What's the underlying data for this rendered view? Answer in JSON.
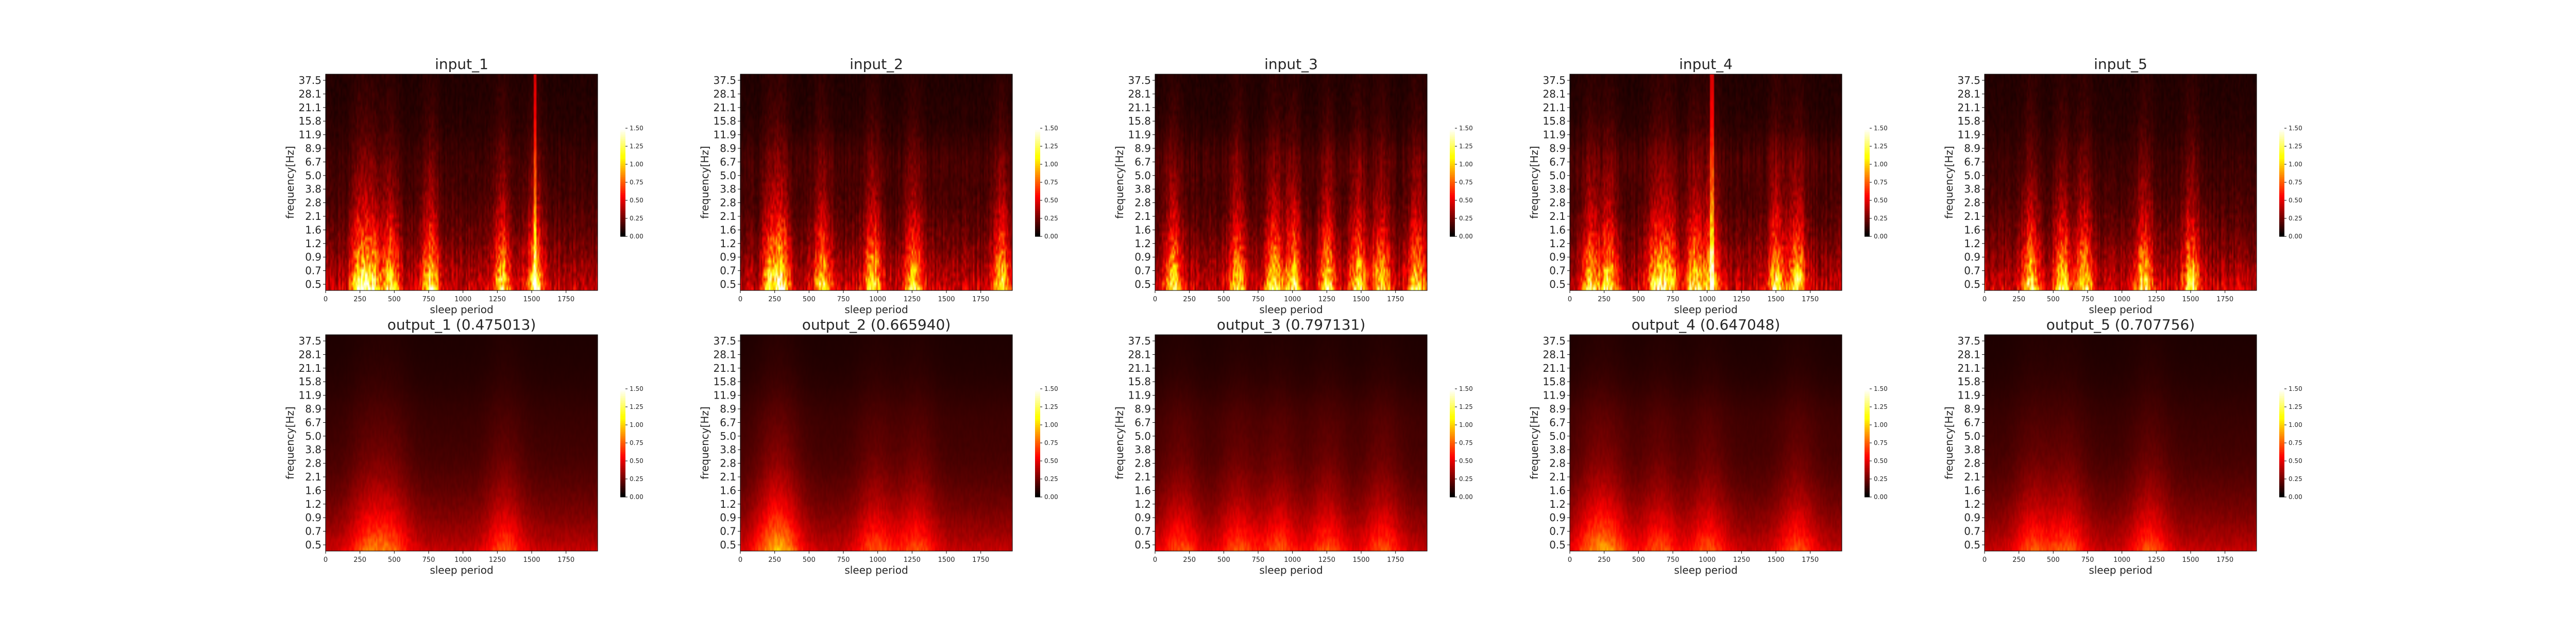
{
  "chart_data": {
    "type": "heatmap",
    "layout": {
      "rows": 2,
      "cols": 5
    },
    "colormap": "hot",
    "colorbar": {
      "min": 0,
      "max": 1.5,
      "ticks": [
        "0.00",
        "0.25",
        "0.50",
        "0.75",
        "1.00",
        "1.25",
        "1.50"
      ]
    },
    "xlabel": "sleep period",
    "ylabel": "frequency[Hz]",
    "xlim": [
      0,
      1980
    ],
    "xticks": [
      "0",
      "250",
      "500",
      "750",
      "1000",
      "1250",
      "1500",
      "1750"
    ],
    "yticks": [
      "0.5",
      "0.7",
      "0.9",
      "1.2",
      "1.6",
      "2.1",
      "2.8",
      "3.8",
      "5.0",
      "6.7",
      "8.9",
      "11.9",
      "15.8",
      "21.1",
      "28.1",
      "37.5"
    ],
    "panels": [
      {
        "title": "input_1",
        "mode": "input",
        "peaks": [
          240,
          330,
          470,
          760,
          1280,
          1520
        ],
        "spikes": [
          1520
        ],
        "hf": 0.15,
        "seed": 1
      },
      {
        "title": "input_2",
        "mode": "input",
        "peaks": [
          220,
          300,
          590,
          960,
          1260,
          1900
        ],
        "spikes": [],
        "hf": 0.3,
        "seed": 2
      },
      {
        "title": "input_3",
        "mode": "input",
        "peaks": [
          130,
          600,
          860,
          1000,
          1250,
          1470,
          1640,
          1900
        ],
        "spikes": [],
        "hf": 0.35,
        "seed": 3
      },
      {
        "title": "input_4",
        "mode": "input",
        "peaks": [
          150,
          280,
          620,
          720,
          900,
          1020,
          1500,
          1650
        ],
        "spikes": [
          1030
        ],
        "hf": 0.4,
        "seed": 4
      },
      {
        "title": "input_5",
        "mode": "input",
        "peaks": [
          330,
          560,
          720,
          1160,
          1500
        ],
        "spikes": [],
        "hf": 0.1,
        "seed": 5
      },
      {
        "title": "output_1 (0.475013)",
        "mode": "output",
        "peaks": [
          300,
          480,
          1300
        ],
        "spikes": [],
        "hf": 0.1,
        "seed": 11
      },
      {
        "title": "output_2 (0.665940)",
        "mode": "output",
        "peaks": [
          220,
          320,
          980,
          1280
        ],
        "spikes": [],
        "hf": 0.15,
        "seed": 12
      },
      {
        "title": "output_3 (0.797131)",
        "mode": "output",
        "peaks": [
          180,
          600,
          900,
          1250,
          1650
        ],
        "spikes": [],
        "hf": 0.2,
        "seed": 13
      },
      {
        "title": "output_4 (0.647048)",
        "mode": "output",
        "peaks": [
          160,
          300,
          650,
          1000,
          1650
        ],
        "spikes": [],
        "hf": 0.2,
        "seed": 14
      },
      {
        "title": "output_5 (0.707756)",
        "mode": "output",
        "peaks": [
          350,
          600,
          1200
        ],
        "spikes": [],
        "hf": 0.1,
        "seed": 15
      }
    ]
  }
}
